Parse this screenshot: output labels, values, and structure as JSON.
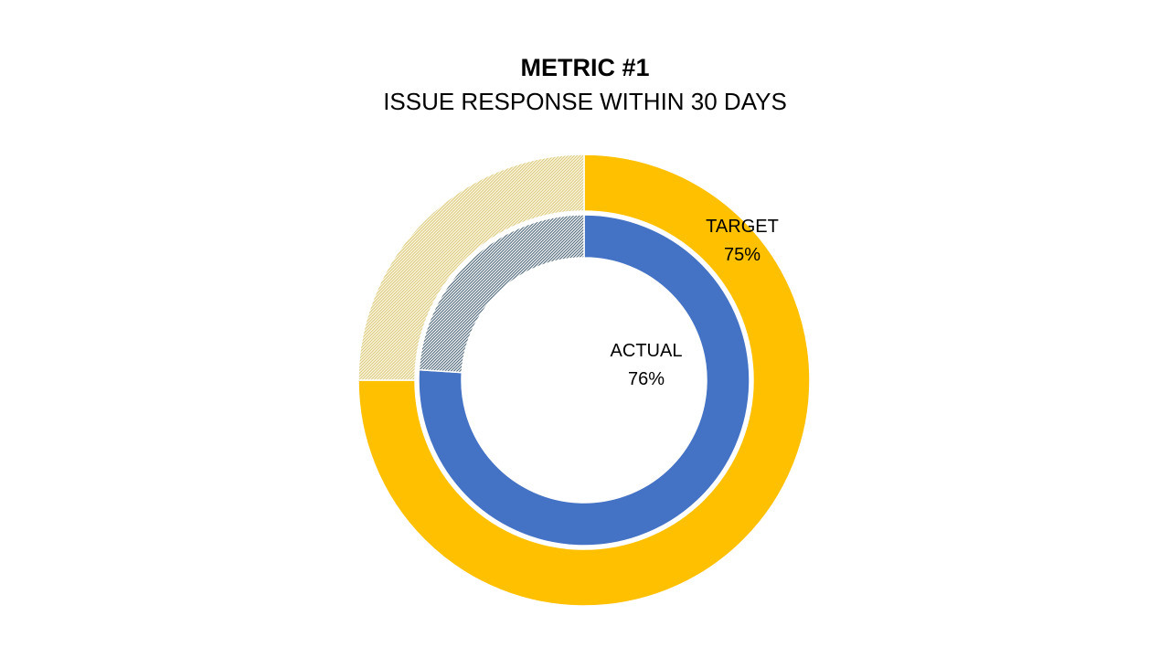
{
  "chart_data": {
    "type": "donut",
    "title": "METRIC #1",
    "subtitle": "ISSUE RESPONSE WITHIN 30 DAYS",
    "direction": "clockwise",
    "start_angle_deg": 0,
    "background": "#FFFFFF",
    "text_color": "#000000",
    "rings": [
      {
        "name": "TARGET",
        "label": "TARGET",
        "value": 75,
        "value_label": "75%",
        "color": "#FFC000",
        "remainder_style": "diagonal-hatch",
        "remainder_line_color": "#DCCA7D",
        "remainder_bg_color": "#FDFAEC"
      },
      {
        "name": "ACTUAL",
        "label": "ACTUAL",
        "value": 76,
        "value_label": "76%",
        "color": "#4472C4",
        "remainder_style": "diagonal-hatch",
        "remainder_line_color": "#2E4B60",
        "remainder_bg_color": "#FFFFFF"
      }
    ]
  }
}
